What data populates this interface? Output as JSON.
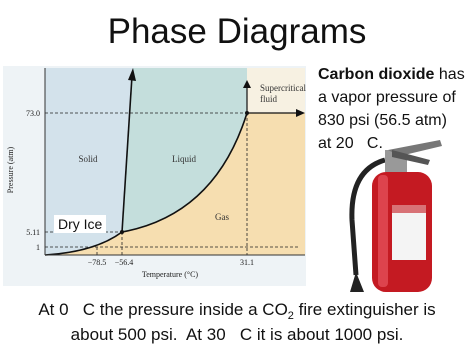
{
  "title": "Phase Diagrams",
  "note": {
    "bold": "Carbon dioxide",
    "lines": [
      " has",
      "a vapor pressure of",
      "830 psi (56.5 atm)",
      "at 20   C."
    ]
  },
  "diagram": {
    "y_label": "Pressure (atm)",
    "x_label": "Temperature (°C)",
    "y_ticks": [
      "73.0",
      "5.11",
      "1"
    ],
    "x_ticks": [
      "−78.5",
      "−56.4",
      "31.1"
    ],
    "regions": {
      "solid": "Solid",
      "liquid": "Liquid",
      "gas": "Gas",
      "supercritical": [
        "Supercritical",
        "fluid"
      ]
    },
    "callout": "Dry Ice"
  },
  "footer": {
    "line1": [
      "At 0   C the pressure inside a CO",
      "2",
      " fire extinguisher is"
    ],
    "line2": "about 500 psi.  At 30   C it is about 1000 psi."
  }
}
